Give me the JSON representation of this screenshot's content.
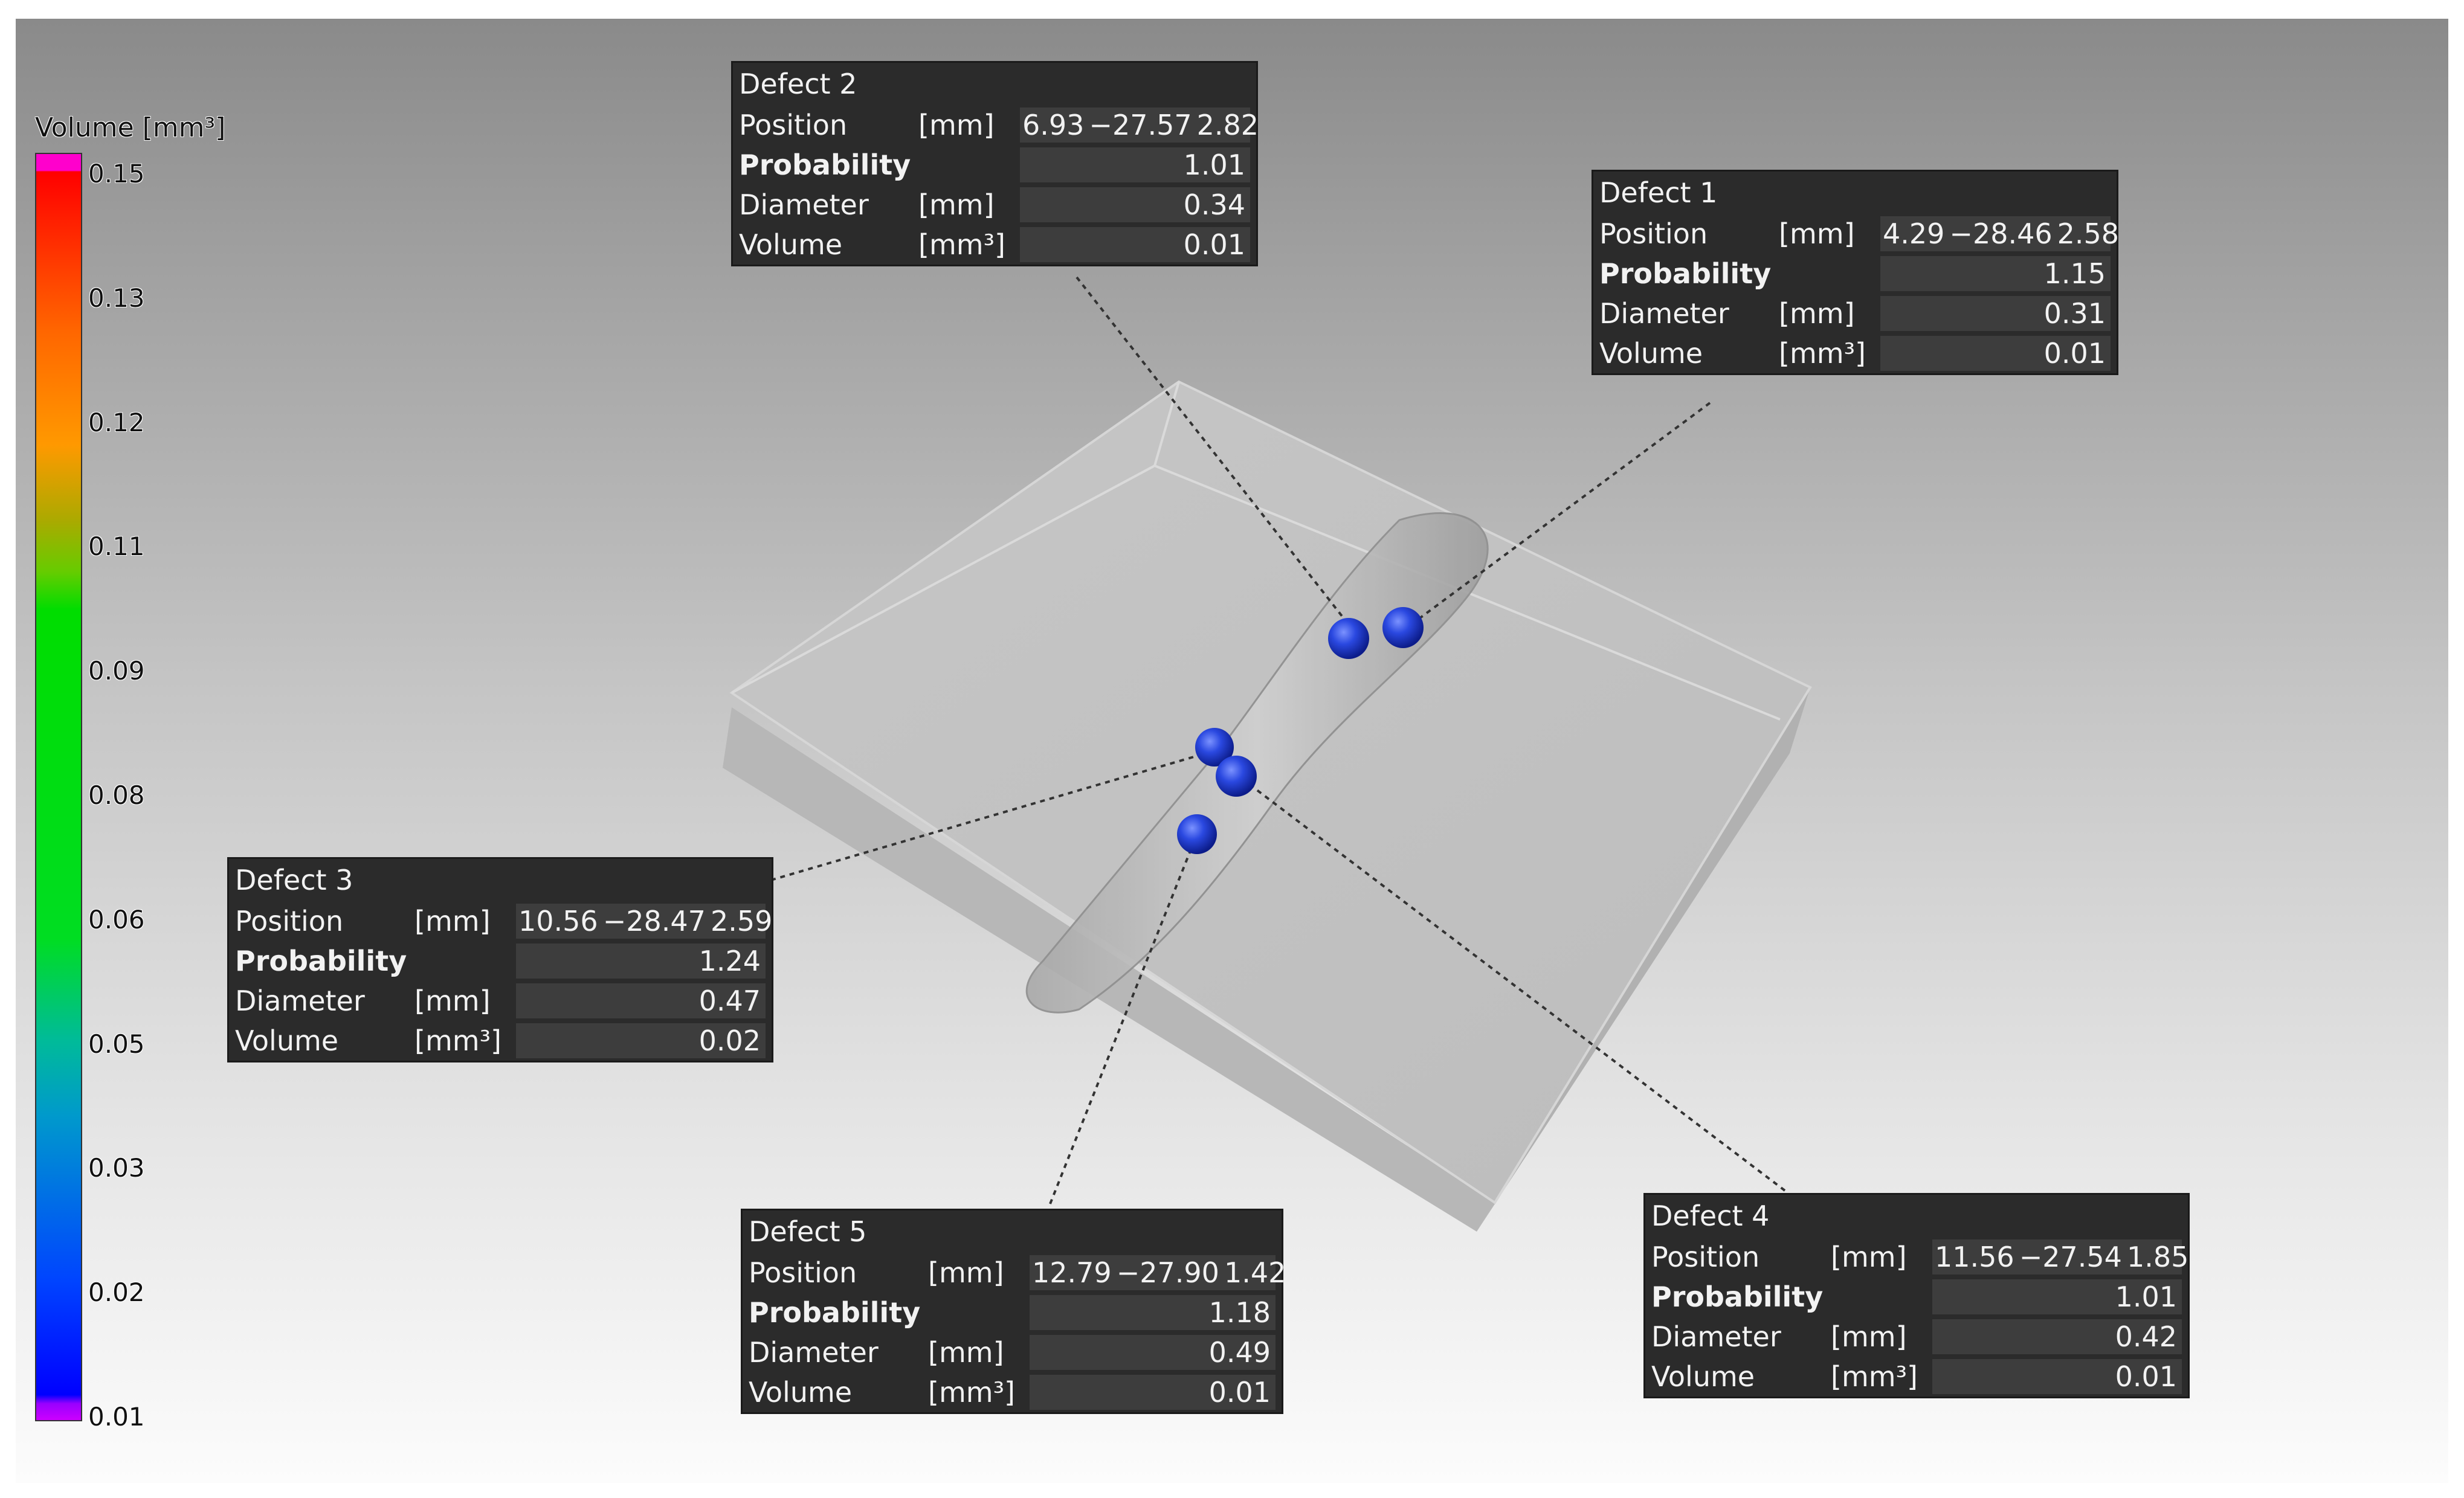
{
  "legend": {
    "title": "Volume [mm³]",
    "ticks": [
      "0.15",
      "0.13",
      "0.12",
      "0.11",
      "0.09",
      "0.08",
      "0.06",
      "0.05",
      "0.03",
      "0.02",
      "0.01"
    ],
    "range": [
      0.01,
      0.15
    ]
  },
  "labels": {
    "position": "Position",
    "probability": "Probability",
    "diameter": "Diameter",
    "volume": "Volume",
    "unit_mm": "[mm]",
    "unit_mm3": "[mm³]"
  },
  "defects": [
    {
      "title": "Defect 1",
      "x": "4.29",
      "y": "−28.46",
      "z": "2.58",
      "probability": "1.15",
      "diameter": "0.31",
      "volume": "0.01"
    },
    {
      "title": "Defect 2",
      "x": "6.93",
      "y": "−27.57",
      "z": "2.82",
      "probability": "1.01",
      "diameter": "0.34",
      "volume": "0.01"
    },
    {
      "title": "Defect 3",
      "x": "10.56",
      "y": "−28.47",
      "z": "2.59",
      "probability": "1.24",
      "diameter": "0.47",
      "volume": "0.02"
    },
    {
      "title": "Defect 4",
      "x": "11.56",
      "y": "−27.54",
      "z": "1.85",
      "probability": "1.01",
      "diameter": "0.42",
      "volume": "0.01"
    },
    {
      "title": "Defect 5",
      "x": "12.79",
      "y": "−27.90",
      "z": "1.42",
      "probability": "1.18",
      "diameter": "0.49",
      "volume": "0.01"
    }
  ],
  "colors": {
    "defect_marker": "#1f3fd8",
    "panel_bg": "#2b2b2b",
    "panel_cell": "#3d3d3d"
  }
}
